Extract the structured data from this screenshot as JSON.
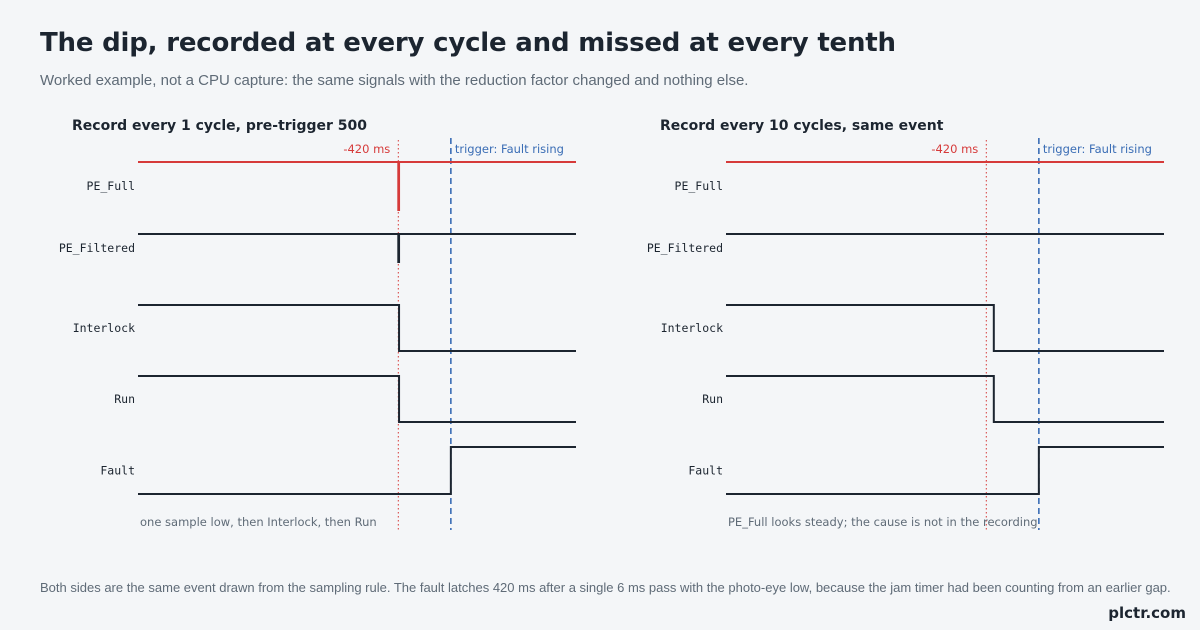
{
  "header": {
    "title": "The dip, recorded at every cycle and missed at every tenth",
    "subtitle": "Worked example, not a CPU capture: the same signals with the reduction factor changed and nothing else."
  },
  "panels": [
    {
      "title": "Record every 1 cycle, pre-trigger 500",
      "signals": [
        {
          "name": "PE_Full",
          "color": "#d63a3a",
          "initial": 1,
          "transitions": [
            [
              -420,
              0
            ],
            [
              -414,
              1
            ]
          ]
        },
        {
          "name": "PE_Filtered",
          "color": "#1c2530",
          "initial": 1,
          "transitions": [
            [
              -420,
              0
            ],
            [
              -414,
              1
            ]
          ]
        },
        {
          "name": "Interlock",
          "color": "#1c2530",
          "initial": 1,
          "transitions": [
            [
              -414,
              0
            ]
          ]
        },
        {
          "name": "Run",
          "color": "#1c2530",
          "initial": 1,
          "transitions": [
            [
              -414,
              0
            ]
          ]
        },
        {
          "name": "Fault",
          "color": "#1c2530",
          "initial": 0,
          "transitions": [
            [
              0,
              1
            ]
          ]
        }
      ],
      "marker_label": "-420 ms",
      "trigger_label": "trigger: Fault rising",
      "note": "one sample low, then Interlock, then Run"
    },
    {
      "title": "Record every 10 cycles, same event",
      "signals": [
        {
          "name": "PE_Full",
          "color": "#d63a3a",
          "initial": 1,
          "transitions": []
        },
        {
          "name": "PE_Filtered",
          "color": "#1c2530",
          "initial": 1,
          "transitions": []
        },
        {
          "name": "Interlock",
          "color": "#1c2530",
          "initial": 1,
          "transitions": [
            [
              -360,
              0
            ]
          ]
        },
        {
          "name": "Run",
          "color": "#1c2530",
          "initial": 1,
          "transitions": [
            [
              -360,
              0
            ]
          ]
        },
        {
          "name": "Fault",
          "color": "#1c2530",
          "initial": 0,
          "transitions": [
            [
              0,
              1
            ]
          ]
        }
      ],
      "marker_label": "-420 ms",
      "trigger_label": "trigger: Fault rising",
      "note": "PE_Full looks steady; the cause is not in the recording"
    }
  ],
  "time_axis_ms": [
    -2500,
    1000
  ],
  "marker_ms": -420,
  "trigger_ms": 0,
  "colors": {
    "marker": "#d63a3a",
    "trigger": "#3a6db5",
    "trace": "#1c2530",
    "highlight": "#d63a3a"
  },
  "footer": "Both sides are the same event drawn from the sampling rule. The fault latches 420 ms after a single 6 ms pass with the photo-eye low, because the jam timer had been counting from an earlier gap.",
  "brand": "plctr.com"
}
